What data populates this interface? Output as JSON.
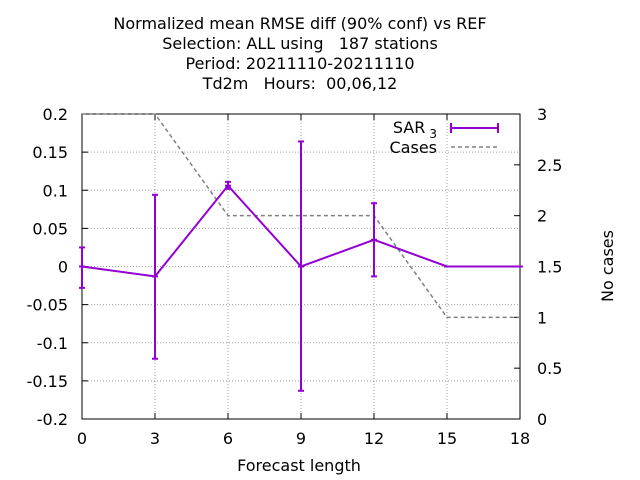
{
  "chart_data": {
    "type": "line",
    "title_lines": [
      "Normalized mean RMSE diff (90% conf) vs REF",
      "Selection: ALL using   187 stations",
      "Period: 20211110-20211110",
      "Td2m   Hours:  00,06,12"
    ],
    "xlabel": "Forecast length",
    "ylabel": "",
    "y2label": "No cases",
    "x": [
      0,
      3,
      6,
      9,
      12,
      15,
      18
    ],
    "xlim": [
      0,
      18
    ],
    "ylim": [
      -0.2,
      0.2
    ],
    "y2lim": [
      0,
      3
    ],
    "x_ticks": [
      "0",
      "3",
      "6",
      "9",
      "12",
      "15",
      "18"
    ],
    "y_ticks": [
      "0.2",
      "0.15",
      "0.1",
      "0.05",
      "0",
      "-0.05",
      "-0.1",
      "-0.15",
      "-0.2"
    ],
    "y2_ticks": [
      "3",
      "2.5",
      "2",
      "1.5",
      "1",
      "0.5",
      "0"
    ],
    "grid": true,
    "legend_position": "top-right",
    "series": [
      {
        "name": "SAR",
        "name_sub": "3",
        "axis": "left",
        "color": "#9400d3",
        "values": [
          0.0,
          -0.013,
          0.106,
          0.0,
          0.035,
          0.0,
          0.0
        ],
        "err_low": [
          -0.028,
          -0.121,
          0.102,
          -0.163,
          -0.013,
          0.0,
          0.0
        ],
        "err_high": [
          0.025,
          0.094,
          0.111,
          0.164,
          0.083,
          0.0,
          0.0
        ]
      },
      {
        "name": "Cases",
        "axis": "right",
        "color": "#808080",
        "style": "dashed",
        "values": [
          3,
          3,
          2,
          2,
          2,
          1,
          1
        ]
      }
    ]
  }
}
